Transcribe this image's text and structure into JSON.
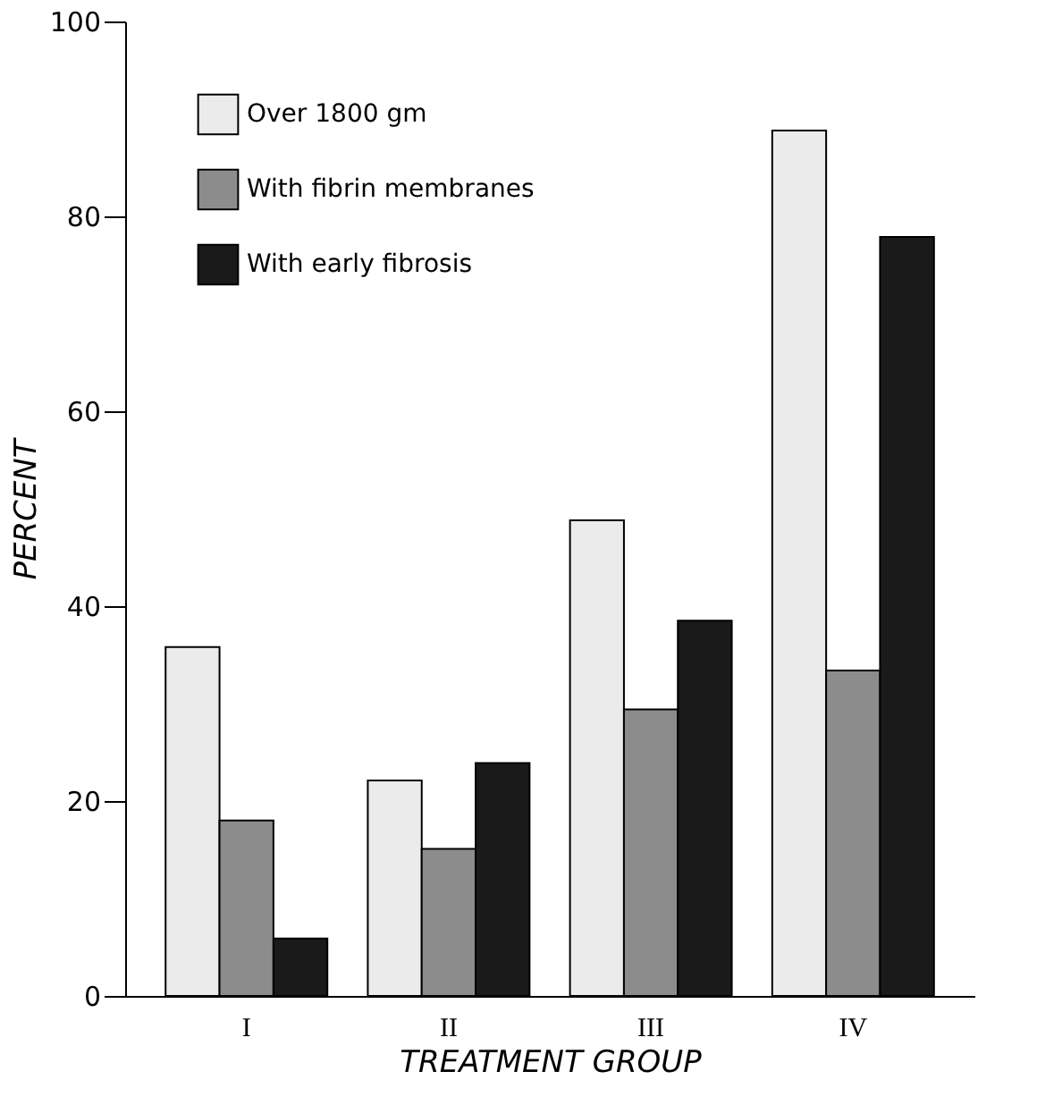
{
  "chart_data": {
    "type": "bar",
    "xlabel": "TREATMENT GROUP",
    "ylabel": "PERCENT",
    "categories": [
      "I",
      "II",
      "III",
      "IV"
    ],
    "series": [
      {
        "name": "Over 1800 gm",
        "color": "#ebebeb",
        "values": [
          35.8,
          22.1,
          48.8,
          88.8
        ]
      },
      {
        "name": "With fibrin membranes",
        "color": "#8c8c8c",
        "values": [
          18.0,
          15.1,
          29.4,
          33.4
        ]
      },
      {
        "name": "With early fibrosis",
        "color": "#1a1a1a",
        "values": [
          5.9,
          23.9,
          38.5,
          77.9
        ]
      }
    ],
    "ylim": [
      0,
      100
    ],
    "yticks": [
      0,
      20,
      40,
      60,
      80,
      100
    ],
    "grid": false,
    "legend": "top left"
  }
}
